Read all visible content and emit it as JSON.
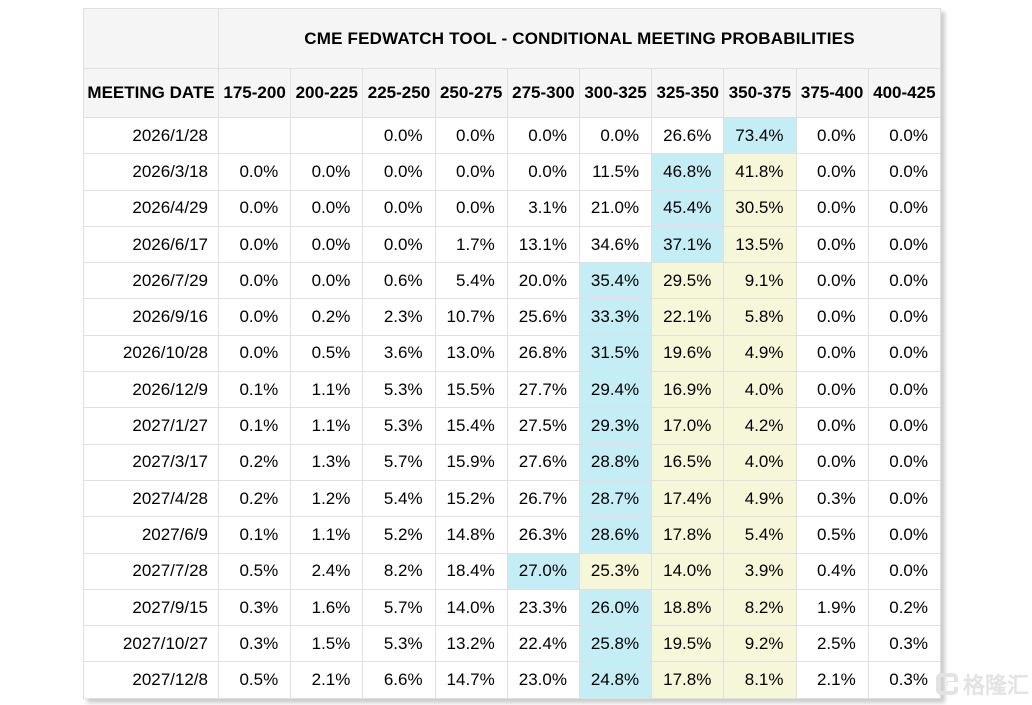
{
  "chart_data": {
    "type": "table",
    "title": "CME FEDWATCH TOOL - CONDITIONAL MEETING PROBABILITIES",
    "row_header": "MEETING DATE",
    "columns": [
      "175-200",
      "200-225",
      "225-250",
      "250-275",
      "275-300",
      "300-325",
      "325-350",
      "350-375",
      "375-400",
      "400-425"
    ],
    "highlight_colors": {
      "cyan": "#c5edf6",
      "yellow": "#f6f6d8"
    },
    "header_bg": "#f5f5f5",
    "rows": [
      {
        "date": "2026/1/28",
        "values": [
          "",
          "",
          "0.0%",
          "0.0%",
          "0.0%",
          "0.0%",
          "26.6%",
          "73.4%",
          "0.0%",
          "0.0%"
        ],
        "highlights": [
          "",
          "",
          "",
          "",
          "",
          "",
          "",
          "cyan",
          "",
          ""
        ]
      },
      {
        "date": "2026/3/18",
        "values": [
          "0.0%",
          "0.0%",
          "0.0%",
          "0.0%",
          "0.0%",
          "11.5%",
          "46.8%",
          "41.8%",
          "0.0%",
          "0.0%"
        ],
        "highlights": [
          "",
          "",
          "",
          "",
          "",
          "",
          "cyan",
          "yellow",
          "",
          ""
        ]
      },
      {
        "date": "2026/4/29",
        "values": [
          "0.0%",
          "0.0%",
          "0.0%",
          "0.0%",
          "3.1%",
          "21.0%",
          "45.4%",
          "30.5%",
          "0.0%",
          "0.0%"
        ],
        "highlights": [
          "",
          "",
          "",
          "",
          "",
          "",
          "cyan",
          "yellow",
          "",
          ""
        ]
      },
      {
        "date": "2026/6/17",
        "values": [
          "0.0%",
          "0.0%",
          "0.0%",
          "1.7%",
          "13.1%",
          "34.6%",
          "37.1%",
          "13.5%",
          "0.0%",
          "0.0%"
        ],
        "highlights": [
          "",
          "",
          "",
          "",
          "",
          "",
          "cyan",
          "yellow",
          "",
          ""
        ]
      },
      {
        "date": "2026/7/29",
        "values": [
          "0.0%",
          "0.0%",
          "0.6%",
          "5.4%",
          "20.0%",
          "35.4%",
          "29.5%",
          "9.1%",
          "0.0%",
          "0.0%"
        ],
        "highlights": [
          "",
          "",
          "",
          "",
          "",
          "cyan",
          "yellow",
          "yellow",
          "",
          ""
        ]
      },
      {
        "date": "2026/9/16",
        "values": [
          "0.0%",
          "0.2%",
          "2.3%",
          "10.7%",
          "25.6%",
          "33.3%",
          "22.1%",
          "5.8%",
          "0.0%",
          "0.0%"
        ],
        "highlights": [
          "",
          "",
          "",
          "",
          "",
          "cyan",
          "yellow",
          "yellow",
          "",
          ""
        ]
      },
      {
        "date": "2026/10/28",
        "values": [
          "0.0%",
          "0.5%",
          "3.6%",
          "13.0%",
          "26.8%",
          "31.5%",
          "19.6%",
          "4.9%",
          "0.0%",
          "0.0%"
        ],
        "highlights": [
          "",
          "",
          "",
          "",
          "",
          "cyan",
          "yellow",
          "yellow",
          "",
          ""
        ]
      },
      {
        "date": "2026/12/9",
        "values": [
          "0.1%",
          "1.1%",
          "5.3%",
          "15.5%",
          "27.7%",
          "29.4%",
          "16.9%",
          "4.0%",
          "0.0%",
          "0.0%"
        ],
        "highlights": [
          "",
          "",
          "",
          "",
          "",
          "cyan",
          "yellow",
          "yellow",
          "",
          ""
        ]
      },
      {
        "date": "2027/1/27",
        "values": [
          "0.1%",
          "1.1%",
          "5.3%",
          "15.4%",
          "27.5%",
          "29.3%",
          "17.0%",
          "4.2%",
          "0.0%",
          "0.0%"
        ],
        "highlights": [
          "",
          "",
          "",
          "",
          "",
          "cyan",
          "yellow",
          "yellow",
          "",
          ""
        ]
      },
      {
        "date": "2027/3/17",
        "values": [
          "0.2%",
          "1.3%",
          "5.7%",
          "15.9%",
          "27.6%",
          "28.8%",
          "16.5%",
          "4.0%",
          "0.0%",
          "0.0%"
        ],
        "highlights": [
          "",
          "",
          "",
          "",
          "",
          "cyan",
          "yellow",
          "yellow",
          "",
          ""
        ]
      },
      {
        "date": "2027/4/28",
        "values": [
          "0.2%",
          "1.2%",
          "5.4%",
          "15.2%",
          "26.7%",
          "28.7%",
          "17.4%",
          "4.9%",
          "0.3%",
          "0.0%"
        ],
        "highlights": [
          "",
          "",
          "",
          "",
          "",
          "cyan",
          "yellow",
          "yellow",
          "",
          ""
        ]
      },
      {
        "date": "2027/6/9",
        "values": [
          "0.1%",
          "1.1%",
          "5.2%",
          "14.8%",
          "26.3%",
          "28.6%",
          "17.8%",
          "5.4%",
          "0.5%",
          "0.0%"
        ],
        "highlights": [
          "",
          "",
          "",
          "",
          "",
          "cyan",
          "yellow",
          "yellow",
          "",
          ""
        ]
      },
      {
        "date": "2027/7/28",
        "values": [
          "0.5%",
          "2.4%",
          "8.2%",
          "18.4%",
          "27.0%",
          "25.3%",
          "14.0%",
          "3.9%",
          "0.4%",
          "0.0%"
        ],
        "highlights": [
          "",
          "",
          "",
          "",
          "cyan",
          "yellow",
          "yellow",
          "yellow",
          "",
          ""
        ]
      },
      {
        "date": "2027/9/15",
        "values": [
          "0.3%",
          "1.6%",
          "5.7%",
          "14.0%",
          "23.3%",
          "26.0%",
          "18.8%",
          "8.2%",
          "1.9%",
          "0.2%"
        ],
        "highlights": [
          "",
          "",
          "",
          "",
          "",
          "cyan",
          "yellow",
          "yellow",
          "",
          ""
        ]
      },
      {
        "date": "2027/10/27",
        "values": [
          "0.3%",
          "1.5%",
          "5.3%",
          "13.2%",
          "22.4%",
          "25.8%",
          "19.5%",
          "9.2%",
          "2.5%",
          "0.3%"
        ],
        "highlights": [
          "",
          "",
          "",
          "",
          "",
          "cyan",
          "yellow",
          "yellow",
          "",
          ""
        ]
      },
      {
        "date": "2027/12/8",
        "values": [
          "0.5%",
          "2.1%",
          "6.6%",
          "14.7%",
          "23.0%",
          "24.8%",
          "17.8%",
          "8.1%",
          "2.1%",
          "0.3%"
        ],
        "highlights": [
          "",
          "",
          "",
          "",
          "",
          "cyan",
          "yellow",
          "yellow",
          "",
          ""
        ]
      }
    ]
  },
  "watermark": {
    "text": "格隆汇"
  }
}
